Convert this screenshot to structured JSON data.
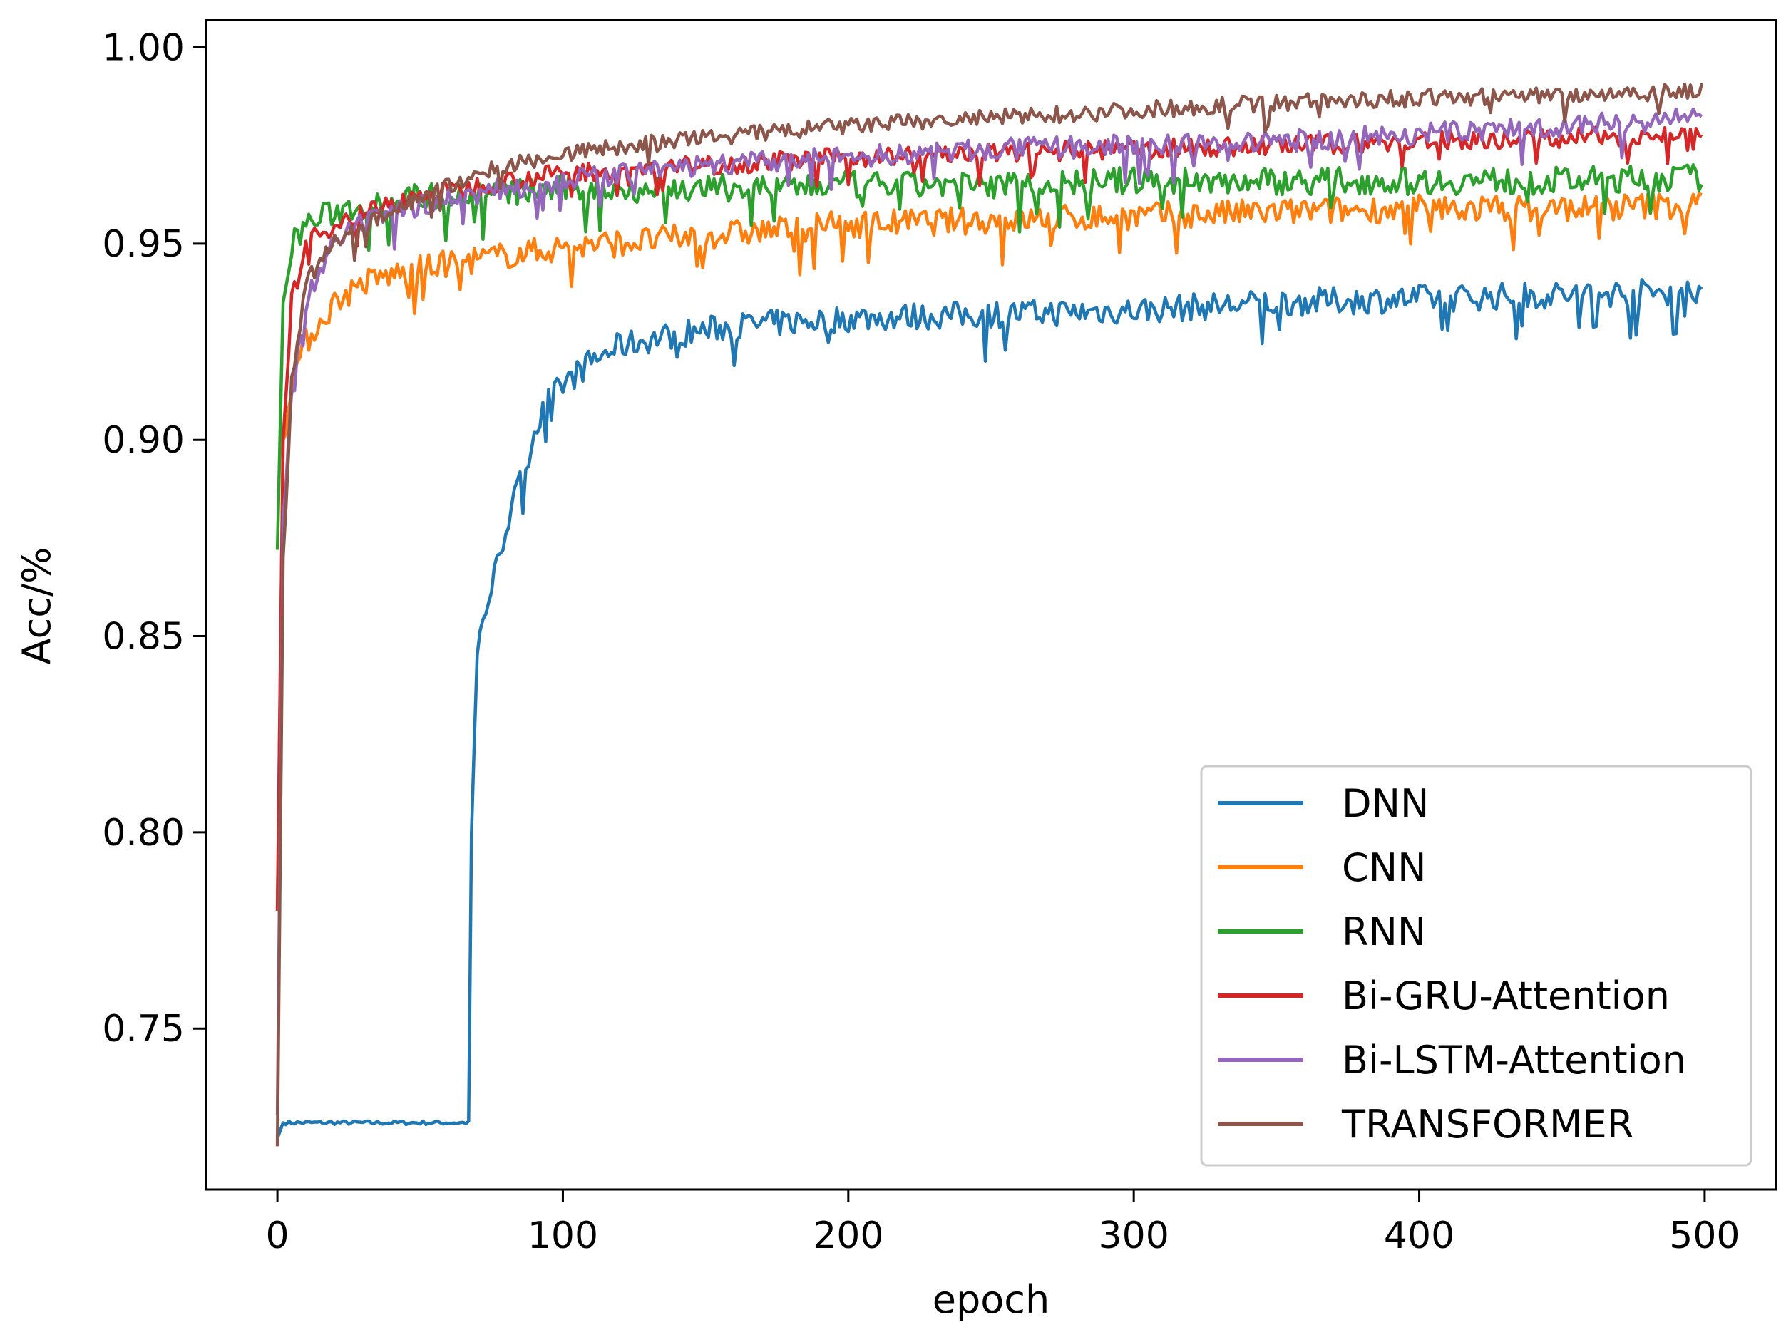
{
  "chart_data": {
    "type": "line",
    "title": "",
    "xlabel": "epoch",
    "ylabel": "Acc/%",
    "xlim": [
      -25,
      525
    ],
    "ylim": [
      0.709,
      1.007
    ],
    "xticks": [
      0,
      100,
      200,
      300,
      400,
      500
    ],
    "yticks": [
      0.75,
      0.8,
      0.85,
      0.9,
      0.95,
      1.0
    ],
    "xtick_labels": [
      "0",
      "100",
      "200",
      "300",
      "400",
      "500"
    ],
    "ytick_labels": [
      "0.75",
      "0.80",
      "0.85",
      "0.90",
      "0.95",
      "1.00"
    ],
    "grid": false,
    "legend_position": "lower right",
    "series": [
      {
        "name": "DNN",
        "color": "#1f77b4",
        "x": [
          0,
          2,
          5,
          10,
          20,
          30,
          40,
          50,
          60,
          67,
          68,
          70,
          72,
          75,
          80,
          85,
          90,
          95,
          100,
          110,
          120,
          140,
          160,
          180,
          200,
          250,
          300,
          350,
          400,
          450,
          500
        ],
        "y": [
          0.722,
          0.726,
          0.726,
          0.726,
          0.726,
          0.726,
          0.726,
          0.726,
          0.726,
          0.726,
          0.8,
          0.845,
          0.855,
          0.862,
          0.878,
          0.889,
          0.902,
          0.91,
          0.914,
          0.92,
          0.924,
          0.927,
          0.929,
          0.93,
          0.931,
          0.932,
          0.933,
          0.935,
          0.936,
          0.937,
          0.938
        ]
      },
      {
        "name": "CNN",
        "color": "#ff7f0e",
        "x": [
          0,
          2,
          5,
          10,
          20,
          30,
          40,
          60,
          80,
          100,
          150,
          200,
          250,
          300,
          350,
          400,
          450,
          500
        ],
        "y": [
          0.78,
          0.9,
          0.915,
          0.925,
          0.935,
          0.94,
          0.942,
          0.945,
          0.947,
          0.949,
          0.952,
          0.955,
          0.956,
          0.957,
          0.958,
          0.959,
          0.959,
          0.96
        ]
      },
      {
        "name": "RNN",
        "color": "#2ca02c",
        "x": [
          0,
          2,
          5,
          10,
          20,
          30,
          50,
          80,
          100,
          150,
          200,
          250,
          300,
          350,
          400,
          450,
          500
        ],
        "y": [
          0.872,
          0.935,
          0.95,
          0.955,
          0.958,
          0.96,
          0.962,
          0.963,
          0.964,
          0.964,
          0.965,
          0.965,
          0.966,
          0.966,
          0.966,
          0.966,
          0.967
        ]
      },
      {
        "name": "Bi-GRU-Attention",
        "color": "#d62728",
        "x": [
          0,
          2,
          5,
          10,
          20,
          30,
          50,
          80,
          100,
          150,
          200,
          250,
          300,
          350,
          400,
          450,
          500
        ],
        "y": [
          0.78,
          0.9,
          0.935,
          0.95,
          0.955,
          0.958,
          0.962,
          0.966,
          0.968,
          0.97,
          0.972,
          0.973,
          0.974,
          0.975,
          0.976,
          0.977,
          0.978
        ]
      },
      {
        "name": "Bi-LSTM-Attention",
        "color": "#9467bd",
        "x": [
          0,
          2,
          5,
          10,
          20,
          30,
          50,
          80,
          100,
          150,
          200,
          250,
          300,
          350,
          400,
          450,
          500
        ],
        "y": [
          0.728,
          0.88,
          0.91,
          0.935,
          0.95,
          0.955,
          0.96,
          0.964,
          0.966,
          0.97,
          0.972,
          0.974,
          0.975,
          0.976,
          0.978,
          0.98,
          0.982
        ]
      },
      {
        "name": "TRANSFORMER",
        "color": "#8c564b",
        "x": [
          0,
          2,
          5,
          10,
          20,
          30,
          50,
          80,
          100,
          150,
          200,
          250,
          300,
          350,
          400,
          450,
          500
        ],
        "y": [
          0.72,
          0.87,
          0.915,
          0.94,
          0.95,
          0.955,
          0.962,
          0.97,
          0.973,
          0.977,
          0.98,
          0.982,
          0.984,
          0.986,
          0.987,
          0.988,
          0.989
        ]
      }
    ]
  }
}
